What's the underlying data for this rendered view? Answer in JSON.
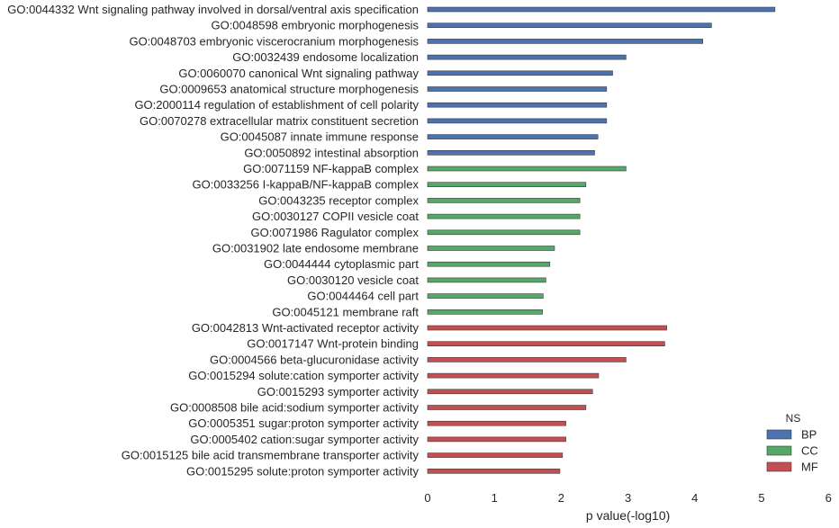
{
  "chart_data": {
    "type": "bar",
    "orientation": "horizontal",
    "xlabel": "p value(-log10)",
    "xlim": [
      0,
      6
    ],
    "xticks": [
      "0",
      "1",
      "2",
      "3",
      "4",
      "5",
      "6"
    ],
    "grid": false,
    "legend": {
      "title": "NS",
      "placement": "bottom-right",
      "entries": [
        "BP",
        "CC",
        "MF"
      ]
    },
    "colors": {
      "BP": "#4c72b0",
      "CC": "#55a868",
      "MF": "#c44e52"
    },
    "bars": [
      {
        "label": "GO:0044332 Wnt signaling pathway involved in dorsal/ventral axis specification",
        "ns": "BP",
        "value": 5.2
      },
      {
        "label": "GO:0048598 embryonic morphogenesis",
        "ns": "BP",
        "value": 4.25
      },
      {
        "label": "GO:0048703 embryonic viscerocranium morphogenesis",
        "ns": "BP",
        "value": 4.12
      },
      {
        "label": "GO:0032439 endosome localization",
        "ns": "BP",
        "value": 2.97
      },
      {
        "label": "GO:0060070 canonical Wnt signaling pathway",
        "ns": "BP",
        "value": 2.77
      },
      {
        "label": "GO:0009653 anatomical structure morphogenesis",
        "ns": "BP",
        "value": 2.68
      },
      {
        "label": "GO:2000114 regulation of establishment of cell polarity",
        "ns": "BP",
        "value": 2.68
      },
      {
        "label": "GO:0070278 extracellular matrix constituent secretion",
        "ns": "BP",
        "value": 2.68
      },
      {
        "label": "GO:0045087 innate immune response",
        "ns": "BP",
        "value": 2.55
      },
      {
        "label": "GO:0050892 intestinal absorption",
        "ns": "BP",
        "value": 2.5
      },
      {
        "label": "GO:0071159 NF-kappaB complex",
        "ns": "CC",
        "value": 2.97
      },
      {
        "label": "GO:0033256 I-kappaB/NF-kappaB complex",
        "ns": "CC",
        "value": 2.37
      },
      {
        "label": "GO:0043235 receptor complex",
        "ns": "CC",
        "value": 2.28
      },
      {
        "label": "GO:0030127 COPII vesicle coat",
        "ns": "CC",
        "value": 2.28
      },
      {
        "label": "GO:0071986 Ragulator complex",
        "ns": "CC",
        "value": 2.28
      },
      {
        "label": "GO:0031902 late endosome membrane",
        "ns": "CC",
        "value": 1.9
      },
      {
        "label": "GO:0044444 cytoplasmic part",
        "ns": "CC",
        "value": 1.83
      },
      {
        "label": "GO:0030120 vesicle coat",
        "ns": "CC",
        "value": 1.77
      },
      {
        "label": "GO:0044464 cell part",
        "ns": "CC",
        "value": 1.73
      },
      {
        "label": "GO:0045121 membrane raft",
        "ns": "CC",
        "value": 1.72
      },
      {
        "label": "GO:0042813 Wnt-activated receptor activity",
        "ns": "MF",
        "value": 3.58
      },
      {
        "label": "GO:0017147 Wnt-protein binding",
        "ns": "MF",
        "value": 3.55
      },
      {
        "label": "GO:0004566 beta-glucuronidase activity",
        "ns": "MF",
        "value": 2.97
      },
      {
        "label": "GO:0015294 solute:cation symporter activity",
        "ns": "MF",
        "value": 2.56
      },
      {
        "label": "GO:0015293 symporter activity",
        "ns": "MF",
        "value": 2.47
      },
      {
        "label": "GO:0008508 bile acid:sodium symporter activity",
        "ns": "MF",
        "value": 2.37
      },
      {
        "label": "GO:0005351 sugar:proton symporter activity",
        "ns": "MF",
        "value": 2.07
      },
      {
        "label": "GO:0005402 cation:sugar symporter activity",
        "ns": "MF",
        "value": 2.07
      },
      {
        "label": "GO:0015125 bile acid transmembrane transporter activity",
        "ns": "MF",
        "value": 2.02
      },
      {
        "label": "GO:0015295 solute:proton symporter activity",
        "ns": "MF",
        "value": 1.98
      }
    ]
  }
}
